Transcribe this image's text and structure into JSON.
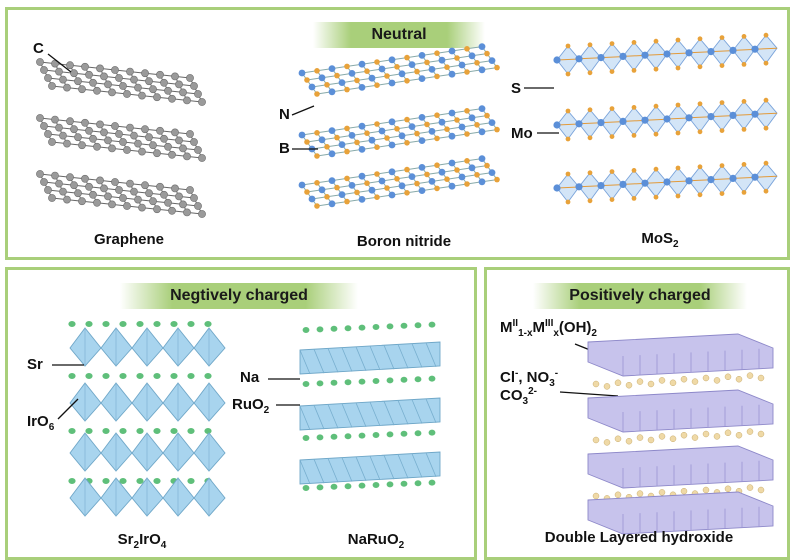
{
  "neutral": {
    "title": "Neutral",
    "graphene": {
      "caption": "Graphene",
      "atom_label": "C"
    },
    "boron_nitride": {
      "caption": "Boron nitride",
      "label_n": "N",
      "label_b": "B"
    },
    "mos2": {
      "caption_main": "MoS",
      "caption_sub": "2",
      "label_s": "S",
      "label_mo": "Mo"
    }
  },
  "negative": {
    "title": "Negtively charged",
    "sr2iro4": {
      "caption_parts": [
        "Sr",
        "2",
        "IrO",
        "4"
      ],
      "label_sr": "Sr",
      "label_iro6_main": "IrO",
      "label_iro6_sub": "6"
    },
    "naruo2": {
      "caption_main": "NaRuO",
      "caption_sub": "2",
      "label_na": "Na",
      "label_ruo2_main": "RuO",
      "label_ruo2_sub": "2"
    }
  },
  "positive": {
    "title": "Positively charged",
    "formula": {
      "m": "M",
      "sup1": "II",
      "sub1": "1-x",
      "m2": "M",
      "sup2": "III",
      "sub2": "x",
      "rest": "(OH)",
      "sub3": "2"
    },
    "anions_line1": {
      "cl": "Cl",
      "cl_sup": "-",
      "sep": ", NO",
      "no_sub": "3",
      "no_sup": "-"
    },
    "anions_line2": {
      "co": "CO",
      "co_sub": "3",
      "co_sup": "2-"
    },
    "caption": "Double Layered hydroxide"
  },
  "colors": {
    "frame_green": "#a9cf7a",
    "graphene_atom": "#9a9a9a",
    "bn_blue": "#5b8fd8",
    "bn_orange": "#e8a23a",
    "octahedron_blue": "#a8d4ee",
    "sr_green": "#5fbf7a",
    "ldh_purple": "#c7c3ec",
    "ldh_anion": "#efd9a6"
  }
}
